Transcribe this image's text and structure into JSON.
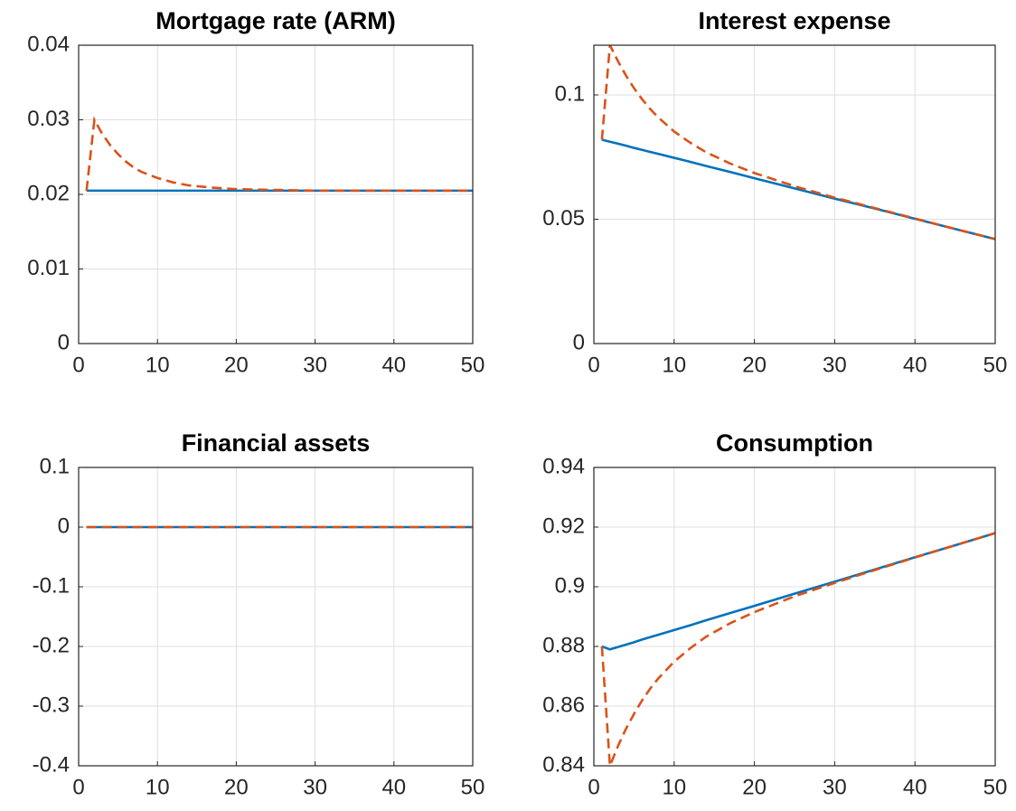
{
  "chart_data": [
    {
      "type": "line",
      "title": "Mortgage rate (ARM)",
      "x": [
        1,
        2,
        3,
        4,
        5,
        6,
        7,
        8,
        10,
        12,
        14,
        17,
        20,
        25,
        30,
        35,
        40,
        45,
        50
      ],
      "series": [
        {
          "color": "#0072bd",
          "line_style": "solid",
          "values": [
            0.0205,
            0.0205,
            0.0205,
            0.0205,
            0.0205,
            0.0205,
            0.0205,
            0.0205,
            0.0205,
            0.0205,
            0.0205,
            0.0205,
            0.0205,
            0.0205,
            0.0205,
            0.0205,
            0.0205,
            0.0205,
            0.0205
          ]
        },
        {
          "color": "#d95319",
          "line_style": "dashed",
          "values": [
            0.0205,
            0.03,
            0.0281,
            0.0266,
            0.0254,
            0.0244,
            0.0236,
            0.023,
            0.0222,
            0.0216,
            0.0212,
            0.0209,
            0.0207,
            0.0206,
            0.0205,
            0.0205,
            0.0205,
            0.0205,
            0.0205
          ]
        }
      ],
      "xlim": [
        0,
        50
      ],
      "xticks": [
        0,
        10,
        20,
        30,
        40,
        50
      ],
      "ylim": [
        0,
        0.04
      ],
      "yticks": [
        0,
        0.01,
        0.02,
        0.03,
        0.04
      ],
      "grid": true
    },
    {
      "type": "line",
      "title": "Interest expense",
      "x": [
        1,
        2,
        3,
        4,
        5,
        6,
        7,
        8,
        10,
        12,
        14,
        17,
        20,
        25,
        30,
        35,
        40,
        45,
        50
      ],
      "series": [
        {
          "color": "#0072bd",
          "line_style": "solid",
          "values": [
            0.082,
            0.0812,
            0.0804,
            0.0796,
            0.0787,
            0.0779,
            0.0771,
            0.0763,
            0.0747,
            0.0731,
            0.0714,
            0.069,
            0.0665,
            0.0624,
            0.0583,
            0.0543,
            0.0502,
            0.0461,
            0.042
          ]
        },
        {
          "color": "#d95319",
          "line_style": "dashed",
          "values": [
            0.082,
            0.12,
            0.1136,
            0.1078,
            0.1027,
            0.0983,
            0.0944,
            0.091,
            0.0853,
            0.0808,
            0.0769,
            0.0724,
            0.0686,
            0.0633,
            0.0587,
            0.0545,
            0.0503,
            0.0461,
            0.042
          ]
        }
      ],
      "xlim": [
        0,
        50
      ],
      "xticks": [
        0,
        10,
        20,
        30,
        40,
        50
      ],
      "ylim": [
        0,
        0.12
      ],
      "yticks": [
        0,
        0.05,
        0.1
      ],
      "grid": true
    },
    {
      "type": "line",
      "title": "Financial assets",
      "x": [
        1,
        2,
        3,
        4,
        5,
        6,
        7,
        8,
        10,
        12,
        14,
        17,
        20,
        25,
        30,
        35,
        40,
        45,
        50
      ],
      "series": [
        {
          "color": "#0072bd",
          "line_style": "solid",
          "values": [
            0,
            0,
            0,
            0,
            0,
            0,
            0,
            0,
            0,
            0,
            0,
            0,
            0,
            0,
            0,
            0,
            0,
            0,
            0
          ]
        },
        {
          "color": "#d95319",
          "line_style": "dashed",
          "values": [
            0,
            0,
            0,
            0,
            0,
            0,
            0,
            0,
            0,
            0,
            0,
            0,
            0,
            0,
            0,
            0,
            0,
            0,
            0
          ]
        }
      ],
      "xlim": [
        0,
        50
      ],
      "xticks": [
        0,
        10,
        20,
        30,
        40,
        50
      ],
      "ylim": [
        -0.4,
        0.1
      ],
      "yticks": [
        -0.4,
        -0.3,
        -0.2,
        -0.1,
        0,
        0.1
      ],
      "grid": true
    },
    {
      "type": "line",
      "title": "Consumption",
      "x": [
        1,
        2,
        3,
        4,
        5,
        6,
        7,
        8,
        10,
        12,
        14,
        17,
        20,
        25,
        30,
        35,
        40,
        45,
        50
      ],
      "series": [
        {
          "color": "#0072bd",
          "line_style": "solid",
          "values": [
            0.88,
            0.879,
            0.8798,
            0.8806,
            0.8814,
            0.8823,
            0.8831,
            0.8839,
            0.8855,
            0.8871,
            0.8888,
            0.8912,
            0.8936,
            0.8977,
            0.9017,
            0.9058,
            0.9099,
            0.9139,
            0.918
          ]
        },
        {
          "color": "#d95319",
          "line_style": "dashed",
          "values": [
            0.88,
            0.84,
            0.8466,
            0.8524,
            0.8574,
            0.8619,
            0.8658,
            0.8692,
            0.8749,
            0.8794,
            0.8833,
            0.8878,
            0.8915,
            0.8968,
            0.9013,
            0.9056,
            0.9098,
            0.9139,
            0.918
          ]
        }
      ],
      "xlim": [
        0,
        50
      ],
      "xticks": [
        0,
        10,
        20,
        30,
        40,
        50
      ],
      "ylim": [
        0.84,
        0.94
      ],
      "yticks": [
        0.84,
        0.86,
        0.88,
        0.9,
        0.92,
        0.94
      ],
      "grid": true
    }
  ]
}
